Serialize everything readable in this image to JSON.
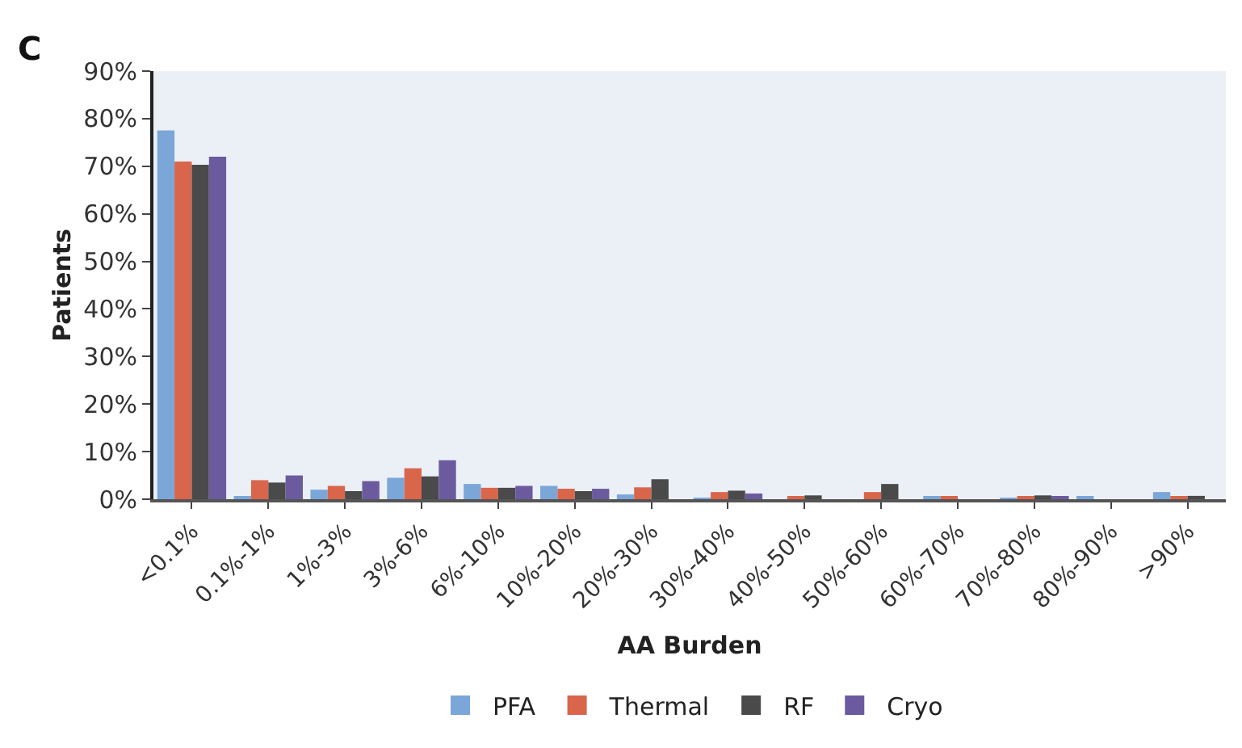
{
  "chart_data": {
    "type": "bar",
    "xlabel": "AA Burden",
    "ylabel": "Patients",
    "annotations": [
      "C"
    ],
    "categories": [
      "<0.1%",
      "0.1%-1%",
      "1%-3%",
      "3%-6%",
      "6%-10%",
      "10%-20%",
      "20%-30%",
      "30%-40%",
      "40%-50%",
      "50%-60%",
      "60%-70%",
      "70%-80%",
      "80%-90%",
      ">90%"
    ],
    "series": [
      {
        "name": "PFA",
        "color": "#7aa6d8",
        "values": [
          77.5,
          0.5,
          2,
          4.5,
          3.2,
          2.8,
          1,
          0.3,
          0,
          0,
          0.4,
          0.3,
          0.6,
          1.5
        ]
      },
      {
        "name": "Thermal",
        "color": "#d9654b",
        "values": [
          71,
          4,
          2.8,
          6.5,
          2.4,
          2.2,
          2.5,
          1.5,
          0.5,
          1.5,
          0.4,
          0.4,
          0,
          0.5
        ]
      },
      {
        "name": "RF",
        "color": "#4a4a4a",
        "values": [
          70.3,
          3.5,
          1.7,
          4.8,
          2.4,
          1.7,
          4.2,
          1.8,
          0.8,
          3.2,
          0,
          0.8,
          0,
          0.7
        ]
      },
      {
        "name": "Cryo",
        "color": "#6b5b9e",
        "values": [
          72,
          5,
          3.8,
          8.2,
          2.8,
          2.2,
          0,
          1.2,
          0,
          0,
          0,
          0.6,
          0,
          0
        ]
      }
    ],
    "ylim": [
      0,
      90
    ],
    "yticks": [
      {
        "value": 0,
        "label": "0%"
      },
      {
        "value": 10,
        "label": "10%"
      },
      {
        "value": 20,
        "label": "20%"
      },
      {
        "value": 30,
        "label": "30%"
      },
      {
        "value": 40,
        "label": "40%"
      },
      {
        "value": 50,
        "label": "50%"
      },
      {
        "value": 60,
        "label": "60%"
      },
      {
        "value": 70,
        "label": "70%"
      },
      {
        "value": 80,
        "label": "80%"
      },
      {
        "value": 90,
        "label": "90%"
      }
    ],
    "grid": false,
    "legend": "bottom"
  }
}
